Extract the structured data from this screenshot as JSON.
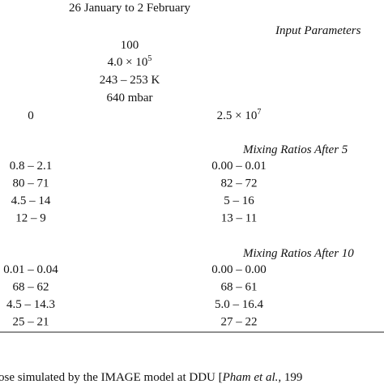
{
  "header": {
    "date_range": "26 January to 2 February"
  },
  "input_parameters": {
    "title": "Input Parameters",
    "values": [
      "100",
      {
        "base": "4.0 × 10",
        "exp": "5"
      },
      "243 – 253 K",
      "640 mbar"
    ],
    "row": [
      "0",
      {
        "base": "2.5 × 10",
        "exp": "7"
      }
    ]
  },
  "mixing_5": {
    "title": "Mixing Ratios After 5",
    "rows": [
      [
        "0.8 – 2.1",
        "0.00 – 0.01"
      ],
      [
        "80 – 71",
        "82 – 72"
      ],
      [
        "4.5 – 14",
        "5 – 16"
      ],
      [
        "12 – 9",
        "13 – 11"
      ]
    ]
  },
  "mixing_10": {
    "title": "Mixing Ratios After 10",
    "rows": [
      [
        "0.01 – 0.04",
        "0.00 – 0.00"
      ],
      [
        "68 – 62",
        "68 – 61"
      ],
      [
        "4.5 – 14.3",
        "5.0 – 16.4"
      ],
      [
        "25 – 21",
        "27 – 22"
      ]
    ]
  },
  "footnote": {
    "before": "ose simulated by the IMAGE model at DDU [",
    "italic": "Pham et al.",
    "after": ", 199"
  }
}
